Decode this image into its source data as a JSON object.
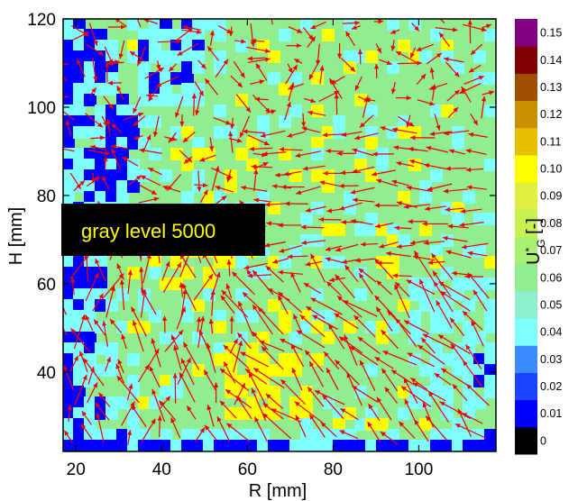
{
  "chart_data": {
    "type": "heatmap",
    "overlay": "vector field (red arrows)",
    "xlabel": "R [mm]",
    "ylabel": "H [mm]",
    "xlim": [
      17,
      118
    ],
    "ylim": [
      22,
      120
    ],
    "xticks": [
      "20",
      "40",
      "60",
      "80",
      "100"
    ],
    "yticks": [
      "40",
      "60",
      "80",
      "100",
      "120"
    ],
    "xtick_values": [
      20,
      40,
      60,
      80,
      100
    ],
    "ytick_values": [
      40,
      60,
      80,
      100,
      120
    ],
    "annotation": "gray level 5000",
    "colorbar": {
      "label_main": "U",
      "label_sup": "*",
      "label_sub": "G",
      "label_unit": " [-]",
      "levels": [
        "0",
        "0.01",
        "0.02",
        "0.03",
        "0.04",
        "0.05",
        "0.06",
        "0.07",
        "0.08",
        "0.09",
        "0.10",
        "0.11",
        "0.12",
        "0.13",
        "0.14",
        "0.15"
      ],
      "colors": [
        "#000000",
        "#0000ff",
        "#1a44ff",
        "#3a8cff",
        "#80ffff",
        "#8cf0d0",
        "#90ee90",
        "#aaf070",
        "#c8f050",
        "#e0f040",
        "#ffff00",
        "#e8c000",
        "#c89000",
        "#a05000",
        "#800000",
        "#800080"
      ]
    },
    "field_colors": {
      "low": "#0000ff",
      "mid": "#80ffff",
      "high": "#90ee90",
      "peak": "#ffff00",
      "arrow": "#ee0000"
    }
  }
}
